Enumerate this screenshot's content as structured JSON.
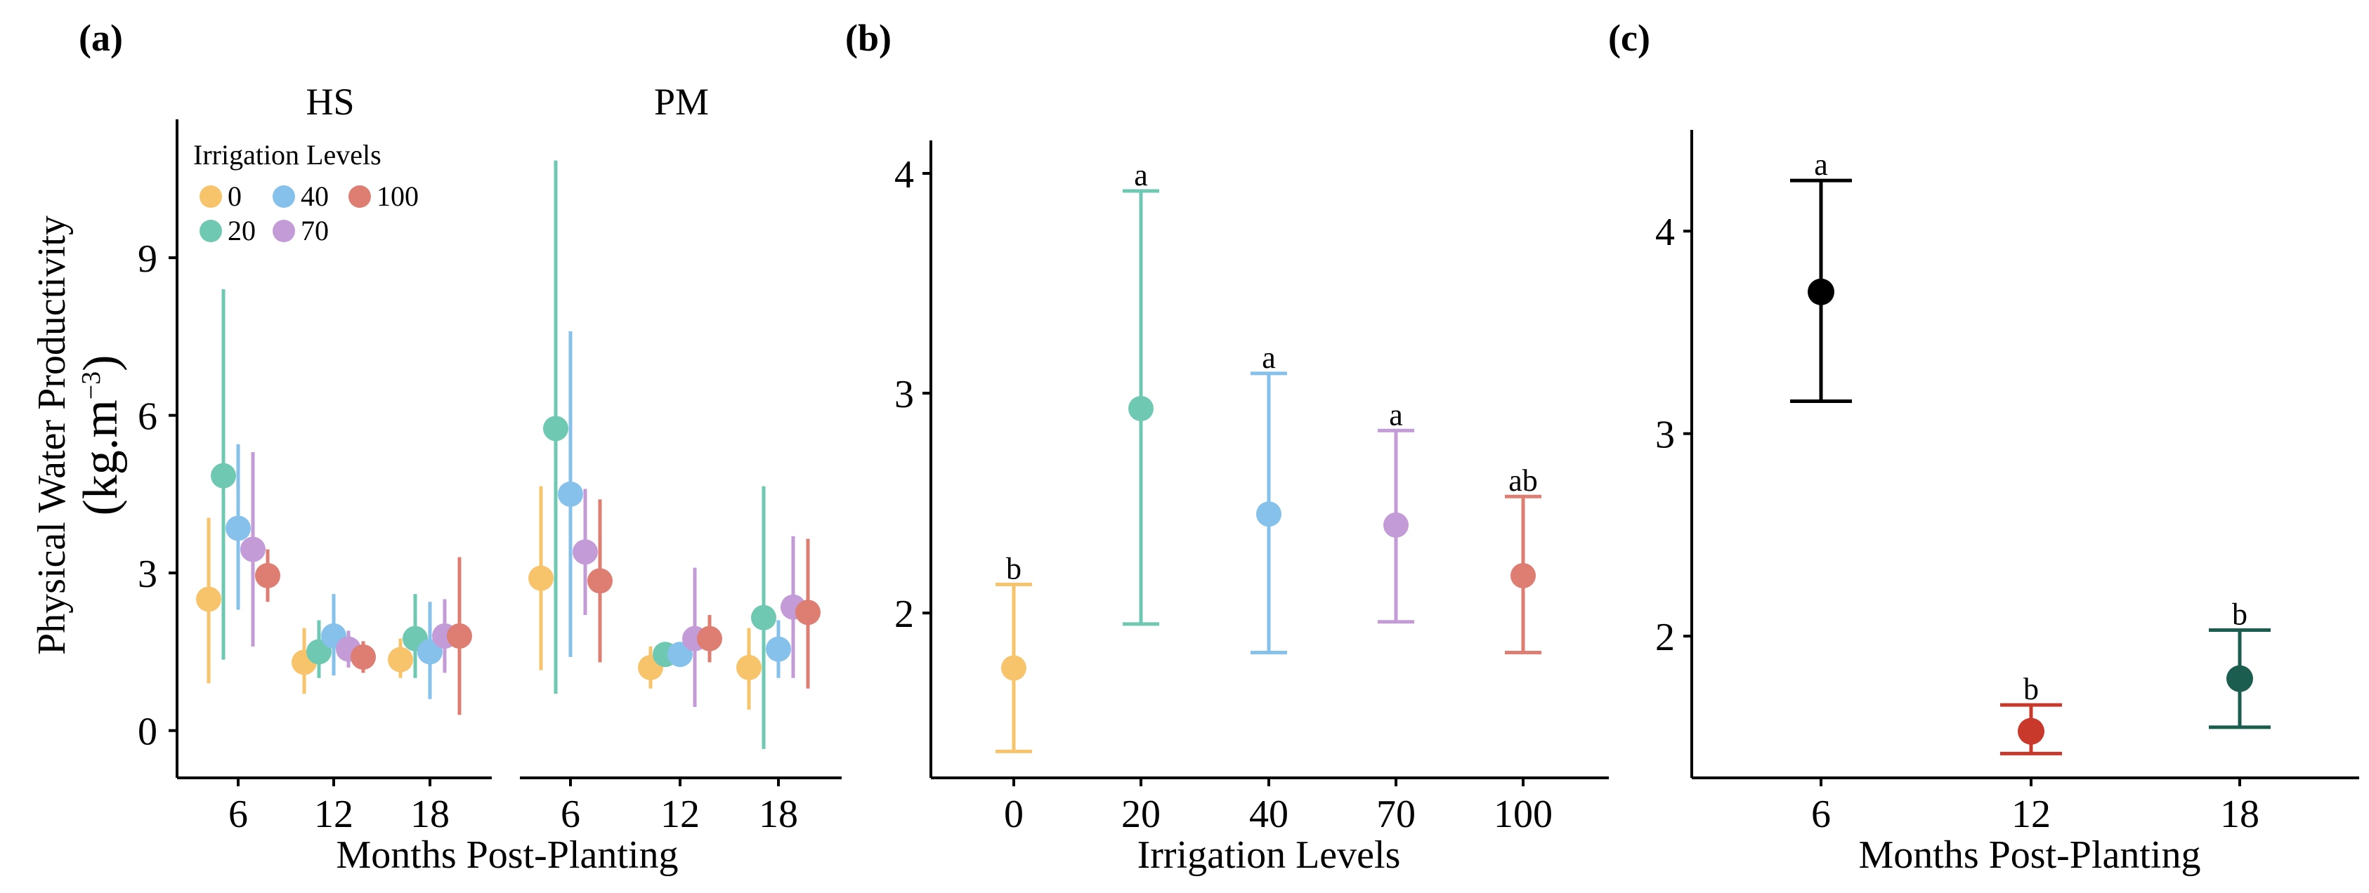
{
  "chart_data": [
    {
      "panel_label": "(a)",
      "type": "scatter",
      "ylabel_line1": "Physical Water Productivity",
      "ylabel_line2_base": "(kg.m",
      "ylabel_line2_sup": "−3",
      "ylabel_line2_end": ")",
      "xlabel": "Months Post-Planting",
      "ylim": [
        -0.9,
        11.5
      ],
      "yticks": [
        "0",
        "3",
        "6",
        "9"
      ],
      "ytick_values": [
        0,
        3,
        6,
        9
      ],
      "categories": [
        "6",
        "12",
        "18"
      ],
      "legend": {
        "title": "Irrigation Levels",
        "placement": "top-left",
        "items": [
          {
            "label": "0",
            "color": "#F7C46C"
          },
          {
            "label": "40",
            "color": "#85C1EA"
          },
          {
            "label": "100",
            "color": "#DE7D72"
          },
          {
            "label": "20",
            "color": "#6FC8B2"
          },
          {
            "label": "70",
            "color": "#C39BD6"
          }
        ]
      },
      "facets": [
        {
          "name": "HS",
          "series": [
            {
              "name": "0",
              "color": "#F7C46C",
              "values": [
                2.5,
                1.3,
                1.35
              ],
              "low": [
                0.9,
                0.7,
                1.0
              ],
              "high": [
                4.05,
                1.95,
                1.75
              ]
            },
            {
              "name": "20",
              "color": "#6FC8B2",
              "values": [
                4.85,
                1.5,
                1.75
              ],
              "low": [
                1.35,
                1.0,
                1.0
              ],
              "high": [
                8.4,
                2.1,
                2.6
              ]
            },
            {
              "name": "40",
              "color": "#85C1EA",
              "values": [
                3.85,
                1.8,
                1.5
              ],
              "low": [
                2.3,
                1.05,
                0.6
              ],
              "high": [
                5.45,
                2.6,
                2.45
              ]
            },
            {
              "name": "70",
              "color": "#C39BD6",
              "values": [
                3.45,
                1.55,
                1.8
              ],
              "low": [
                1.6,
                1.2,
                1.1
              ],
              "high": [
                5.3,
                1.9,
                2.5
              ]
            },
            {
              "name": "100",
              "color": "#DE7D72",
              "values": [
                2.95,
                1.4,
                1.8
              ],
              "low": [
                2.45,
                1.1,
                0.3
              ],
              "high": [
                3.45,
                1.7,
                3.3
              ]
            }
          ]
        },
        {
          "name": "PM",
          "series": [
            {
              "name": "0",
              "color": "#F7C46C",
              "values": [
                2.9,
                1.2,
                1.2
              ],
              "low": [
                1.15,
                0.8,
                0.4
              ],
              "high": [
                4.65,
                1.6,
                1.95
              ]
            },
            {
              "name": "20",
              "color": "#6FC8B2",
              "values": [
                5.75,
                1.45,
                2.15
              ],
              "low": [
                0.7,
                1.3,
                -0.35
              ],
              "high": [
                10.85,
                1.6,
                4.65
              ]
            },
            {
              "name": "40",
              "color": "#85C1EA",
              "values": [
                4.5,
                1.45,
                1.55
              ],
              "low": [
                1.4,
                1.3,
                1.0
              ],
              "high": [
                7.6,
                1.6,
                2.1
              ]
            },
            {
              "name": "70",
              "color": "#C39BD6",
              "values": [
                3.4,
                1.75,
                2.35
              ],
              "low": [
                2.2,
                0.45,
                1.0
              ],
              "high": [
                4.6,
                3.1,
                3.7
              ]
            },
            {
              "name": "100",
              "color": "#DE7D72",
              "values": [
                2.85,
                1.75,
                2.25
              ],
              "low": [
                1.3,
                1.3,
                0.8
              ],
              "high": [
                4.4,
                2.2,
                3.65
              ]
            }
          ]
        }
      ]
    },
    {
      "panel_label": "(b)",
      "type": "scatter",
      "xlabel": "Irrigation Levels",
      "ylim": [
        1.25,
        4.15
      ],
      "yticks": [
        "2",
        "3",
        "4"
      ],
      "ytick_values": [
        2,
        3,
        4
      ],
      "categories": [
        "0",
        "20",
        "40",
        "70",
        "100"
      ],
      "colors": [
        "#F7C46C",
        "#6FC8B2",
        "#85C1EA",
        "#C39BD6",
        "#DE7D72"
      ],
      "values": [
        1.75,
        2.93,
        2.45,
        2.4,
        2.17
      ],
      "low": [
        1.37,
        1.95,
        1.82,
        1.96,
        1.82
      ],
      "high": [
        2.13,
        3.92,
        3.09,
        2.83,
        2.53
      ],
      "letters": [
        "b",
        "a",
        "a",
        "a",
        "ab"
      ]
    },
    {
      "panel_label": "(c)",
      "type": "scatter",
      "xlabel": "Months Post-Planting",
      "ylim": [
        1.3,
        4.5
      ],
      "yticks": [
        "2",
        "3",
        "4"
      ],
      "ytick_values": [
        2,
        3,
        4
      ],
      "categories": [
        "6",
        "12",
        "18"
      ],
      "colors": [
        "#000000",
        "#C8382B",
        "#1B5E4F"
      ],
      "values": [
        3.7,
        1.53,
        1.79
      ],
      "low": [
        3.16,
        1.42,
        1.55
      ],
      "high": [
        4.25,
        1.66,
        2.03
      ],
      "letters": [
        "a",
        "b",
        "b"
      ]
    }
  ]
}
